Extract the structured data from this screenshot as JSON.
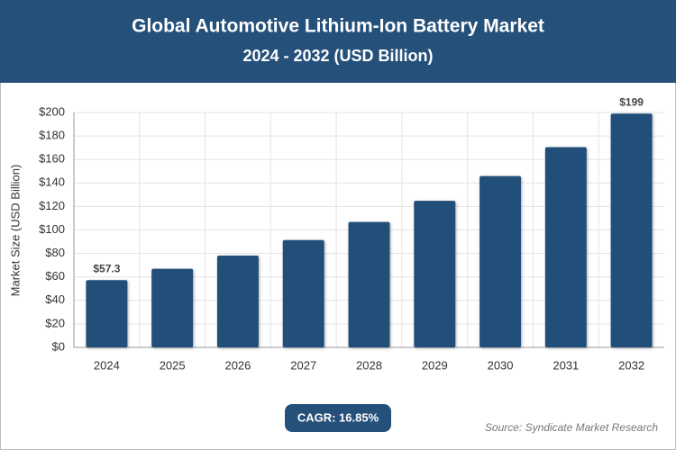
{
  "chart_data": {
    "type": "bar",
    "title": "Global Automotive Lithium-Ion Battery Market",
    "subtitle": "2024 - 2032 (USD Billion)",
    "y_label": "Market Size (USD Billion)",
    "categories": [
      "2024",
      "2025",
      "2026",
      "2027",
      "2028",
      "2029",
      "2030",
      "2031",
      "2032"
    ],
    "values": [
      57.3,
      67,
      78.2,
      91.4,
      106.8,
      124.8,
      145.9,
      170.5,
      199
    ],
    "value_labels": [
      "$57.3",
      null,
      null,
      null,
      null,
      null,
      null,
      null,
      "$199"
    ],
    "color": "#24507a",
    "ylim": [
      0,
      200
    ],
    "yticks": [
      {
        "value": 0,
        "label": "$0"
      },
      {
        "value": 20,
        "label": "$20"
      },
      {
        "value": 40,
        "label": "$40"
      },
      {
        "value": 60,
        "label": "$60"
      },
      {
        "value": 80,
        "label": "$80"
      },
      {
        "value": 100,
        "label": "$100"
      },
      {
        "value": 120,
        "label": "$120"
      },
      {
        "value": 140,
        "label": "$140"
      },
      {
        "value": 160,
        "label": "$160"
      },
      {
        "value": 180,
        "label": "$180"
      },
      {
        "value": 200,
        "label": "$200"
      }
    ],
    "grid": true,
    "cagr": "CAGR: 16.85%",
    "source": "Source: Syndicate Market Research"
  }
}
